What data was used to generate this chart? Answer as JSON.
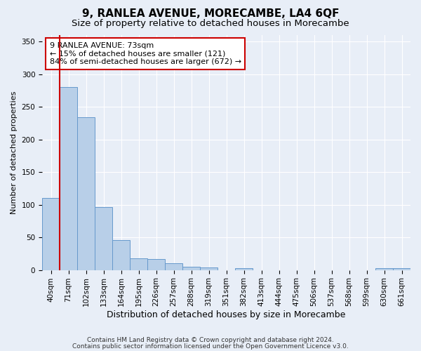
{
  "title": "9, RANLEA AVENUE, MORECAMBE, LA4 6QF",
  "subtitle": "Size of property relative to detached houses in Morecambe",
  "xlabel": "Distribution of detached houses by size in Morecambe",
  "ylabel": "Number of detached properties",
  "categories": [
    "40sqm",
    "71sqm",
    "102sqm",
    "133sqm",
    "164sqm",
    "195sqm",
    "226sqm",
    "257sqm",
    "288sqm",
    "319sqm",
    "351sqm",
    "382sqm",
    "413sqm",
    "444sqm",
    "475sqm",
    "506sqm",
    "537sqm",
    "568sqm",
    "599sqm",
    "630sqm",
    "661sqm"
  ],
  "values": [
    110,
    280,
    234,
    96,
    46,
    18,
    17,
    10,
    5,
    4,
    0,
    3,
    0,
    0,
    0,
    0,
    0,
    0,
    0,
    3,
    3
  ],
  "bar_color": "#b8cfe8",
  "bar_edge_color": "#6699cc",
  "highlight_color": "#cc0000",
  "red_line_x": 0.5,
  "annotation_text": "9 RANLEA AVENUE: 73sqm\n← 15% of detached houses are smaller (121)\n84% of semi-detached houses are larger (672) →",
  "annotation_box_color": "#ffffff",
  "annotation_box_edge": "#cc0000",
  "ylim": [
    0,
    360
  ],
  "yticks": [
    0,
    50,
    100,
    150,
    200,
    250,
    300,
    350
  ],
  "footer_line1": "Contains HM Land Registry data © Crown copyright and database right 2024.",
  "footer_line2": "Contains public sector information licensed under the Open Government Licence v3.0.",
  "background_color": "#e8eef7",
  "plot_bg_color": "#e8eef7",
  "grid_color": "#ffffff",
  "title_fontsize": 11,
  "subtitle_fontsize": 9.5,
  "xlabel_fontsize": 9,
  "ylabel_fontsize": 8,
  "tick_fontsize": 7.5,
  "annotation_fontsize": 8,
  "footer_fontsize": 6.5
}
